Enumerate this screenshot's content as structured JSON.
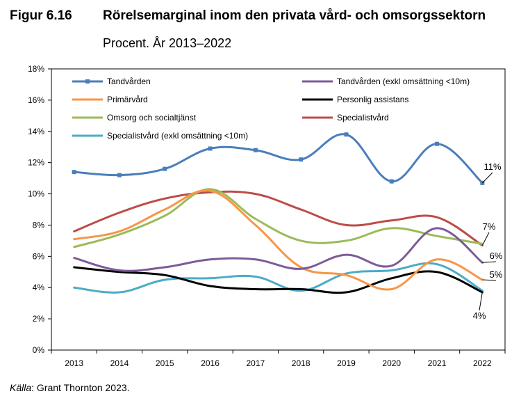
{
  "figure": {
    "number": "Figur 6.16",
    "title": "Rörelsemarginal inom den privata vård- och omsorgssektorn",
    "subtitle": "Procent. År 2013–2022"
  },
  "source": {
    "label": "Källa",
    "text": ": Grant Thornton 2023."
  },
  "chart_data": {
    "type": "line",
    "title": "",
    "xlabel": "",
    "ylabel": "",
    "categories": [
      "2013",
      "2014",
      "2015",
      "2016",
      "2017",
      "2018",
      "2019",
      "2020",
      "2021",
      "2022"
    ],
    "ylim": [
      0,
      18
    ],
    "yticks": [
      0,
      2,
      4,
      6,
      8,
      10,
      12,
      14,
      16,
      18
    ],
    "ytick_labels": [
      "0%",
      "2%",
      "4%",
      "6%",
      "8%",
      "10%",
      "12%",
      "14%",
      "16%",
      "18%"
    ],
    "grid": false,
    "legend_position": "top",
    "series": [
      {
        "name": "Tandvården",
        "color": "#4a7ebb",
        "markers": true,
        "values": [
          11.4,
          11.2,
          11.6,
          12.9,
          12.8,
          12.2,
          13.8,
          10.8,
          13.2,
          10.7
        ]
      },
      {
        "name": "Tandvården (exkl omsättning <10m)",
        "color": "#7d5a9a",
        "markers": false,
        "values": [
          5.9,
          5.1,
          5.3,
          5.8,
          5.8,
          5.2,
          6.1,
          5.4,
          7.8,
          5.6
        ]
      },
      {
        "name": "Primärvård",
        "color": "#f79646",
        "markers": false,
        "values": [
          7.1,
          7.6,
          9.0,
          10.2,
          8.0,
          5.3,
          4.8,
          3.9,
          5.8,
          4.5
        ]
      },
      {
        "name": "Personlig assistans",
        "color": "#000000",
        "markers": false,
        "values": [
          5.3,
          5.0,
          4.8,
          4.1,
          3.9,
          3.9,
          3.7,
          4.6,
          5.0,
          3.7
        ]
      },
      {
        "name": "Omsorg och socialtjänst",
        "color": "#9bbb59",
        "markers": false,
        "values": [
          6.6,
          7.4,
          8.6,
          10.3,
          8.4,
          7.0,
          7.0,
          7.8,
          7.3,
          6.8
        ]
      },
      {
        "name": "Specialistvård",
        "color": "#be4b48",
        "markers": false,
        "values": [
          7.6,
          8.8,
          9.7,
          10.1,
          10.0,
          9.0,
          8.0,
          8.3,
          8.5,
          6.7
        ]
      },
      {
        "name": "Specialistvård (exkl omsättning <10m)",
        "color": "#4bacc6",
        "markers": false,
        "values": [
          4.0,
          3.7,
          4.5,
          4.6,
          4.7,
          3.8,
          4.9,
          5.1,
          5.5,
          3.8
        ]
      }
    ],
    "annotations": [
      {
        "text": "11%",
        "x": "2022",
        "y": 10.7
      },
      {
        "text": "7%",
        "x": "2022",
        "y": 6.7
      },
      {
        "text": "6%",
        "x": "2022",
        "y": 5.6
      },
      {
        "text": "5%",
        "x": "2022",
        "y": 4.5
      },
      {
        "text": "4%",
        "x": "2022",
        "y": 3.7
      }
    ]
  }
}
